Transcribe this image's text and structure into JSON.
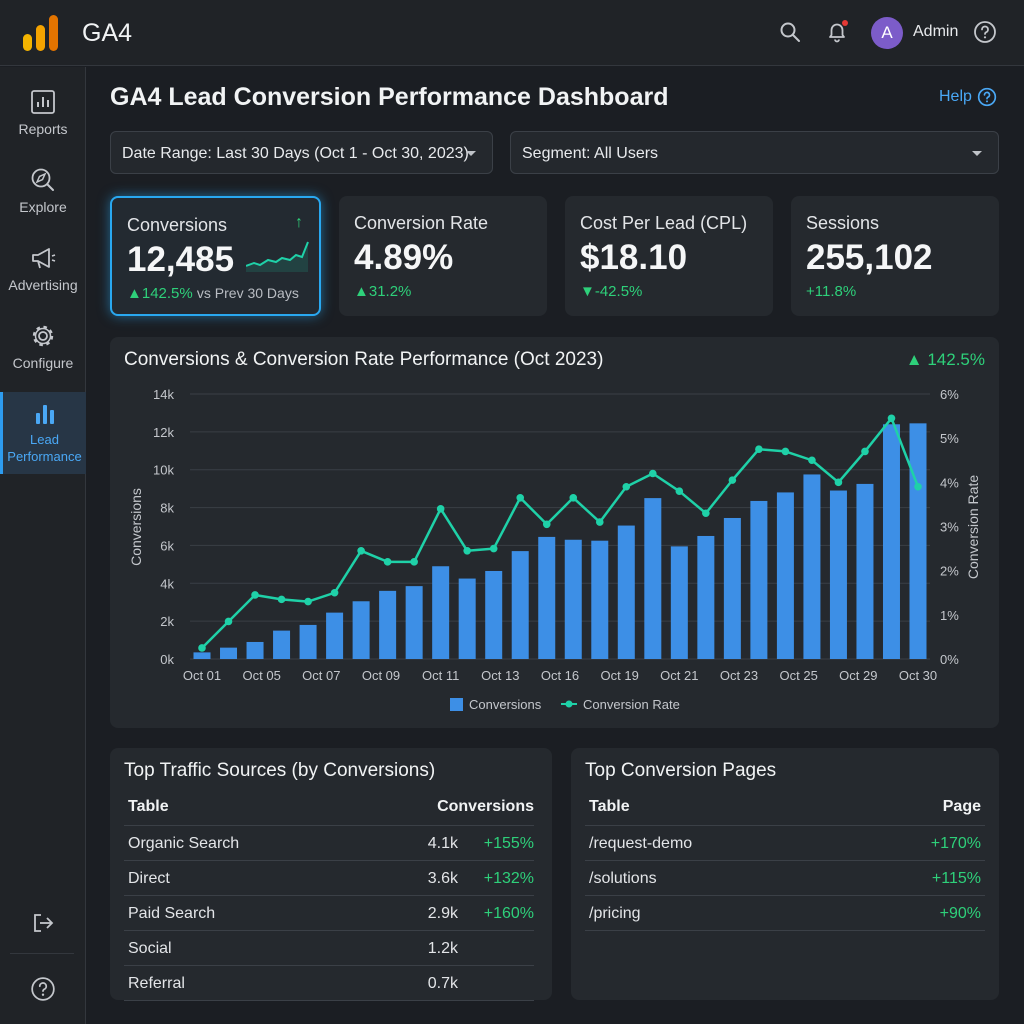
{
  "app": {
    "title": "GA4",
    "user_initial": "A",
    "user_name": "Admin"
  },
  "icons": [
    "ga4-logo-icon",
    "search-icon",
    "bell-icon",
    "help-circle-icon",
    "reports-icon",
    "explore-icon",
    "advertising-icon",
    "configure-icon",
    "lead-performance-icon",
    "logout-icon"
  ],
  "colors": {
    "accent": "#2d9cf0",
    "bar": "#3d8fe6",
    "line": "#1fd1a8",
    "positive": "#2ed07a",
    "background": "#1b1e23"
  },
  "sidebar": {
    "items": [
      {
        "label": "Reports"
      },
      {
        "label": "Explore"
      },
      {
        "label": "Advertising"
      },
      {
        "label": "Configure"
      },
      {
        "label_line1": "Lead",
        "label_line2": "Performance",
        "active": true
      }
    ]
  },
  "page": {
    "title": "GA4 Lead Conversion Performance Dashboard",
    "help_label": "Help"
  },
  "filters": {
    "date_range": "Date Range: Last 30 Days (Oct 1 - Oct 30, 2023)",
    "segment": "Segment: All Users"
  },
  "kpis": [
    {
      "label": "Conversions",
      "value": "12,485",
      "delta": "▲142.5%",
      "delta_note": "vs Prev 30 Days",
      "trend_arrow": "↑"
    },
    {
      "label": "Conversion Rate",
      "value": "4.89%",
      "delta": "▲31.2%"
    },
    {
      "label": "Cost Per Lead (CPL)",
      "value": "$18.10",
      "delta": "▼-42.5%"
    },
    {
      "label": "Sessions",
      "value": "255,102",
      "delta": "+11.8%"
    }
  ],
  "chart_panel": {
    "title": "Conversions & Conversion Rate Performance (Oct 2023)",
    "badge": "▲ 142.5%"
  },
  "chart_data": {
    "type": "bar",
    "title": "Conversions & Conversion Rate Performance (Oct 2023)",
    "ylabel": "Conversions",
    "y2label": "Conversion Rate",
    "ylim": [
      0,
      14000
    ],
    "y2lim": [
      0,
      6
    ],
    "y_ticks": [
      "0k",
      "2k",
      "4k",
      "6k",
      "8k",
      "10k",
      "12k",
      "14k"
    ],
    "y2_ticks": [
      "0%",
      "1%",
      "2%",
      "3%",
      "4%",
      "5%",
      "6%"
    ],
    "x_tick_labels": [
      "Oct 01",
      "Oct 05",
      "Oct 07",
      "Oct 09",
      "Oct 11",
      "Oct 13",
      "Oct 16",
      "Oct 19",
      "Oct 21",
      "Oct 23",
      "Oct 25",
      "Oct 29",
      "Oct 30"
    ],
    "grid": true,
    "legend": "bottom",
    "series": [
      {
        "name": "Conversions",
        "type": "bar",
        "values": [
          350,
          600,
          900,
          1500,
          1800,
          2450,
          3050,
          3600,
          3850,
          4900,
          4250,
          4650,
          5700,
          6450,
          6300,
          6250,
          7050,
          8500,
          5950,
          6500,
          7450,
          8350,
          8800,
          9750,
          8900,
          9250,
          12400,
          12450
        ]
      },
      {
        "name": "Conversion Rate",
        "type": "line",
        "values": [
          0.25,
          0.85,
          1.45,
          1.35,
          1.3,
          1.5,
          2.45,
          2.2,
          2.2,
          3.4,
          2.45,
          2.5,
          3.65,
          3.05,
          3.65,
          3.1,
          3.9,
          4.2,
          3.8,
          3.3,
          4.05,
          4.75,
          4.7,
          4.5,
          4.0,
          4.7,
          5.45,
          3.9
        ]
      }
    ]
  },
  "traffic_sources": {
    "title": "Top Traffic Sources (by Conversions)",
    "col1": "Table",
    "col2": "Conversions",
    "rows": [
      {
        "name": "Organic Search",
        "value": "4.1k",
        "change": "+155%"
      },
      {
        "name": "Direct",
        "value": "3.6k",
        "change": "+132%"
      },
      {
        "name": "Paid Search",
        "value": "2.9k",
        "change": "+160%"
      },
      {
        "name": "Social",
        "value": "1.2k",
        "change": ""
      },
      {
        "name": "Referral",
        "value": "0.7k",
        "change": ""
      }
    ]
  },
  "conversion_pages": {
    "title": "Top Conversion Pages",
    "col1": "Table",
    "col2": "Page",
    "rows": [
      {
        "name": "/request-demo",
        "change": "+170%"
      },
      {
        "name": "/solutions",
        "change": "+115%"
      },
      {
        "name": "/pricing",
        "change": "+90%"
      }
    ]
  }
}
